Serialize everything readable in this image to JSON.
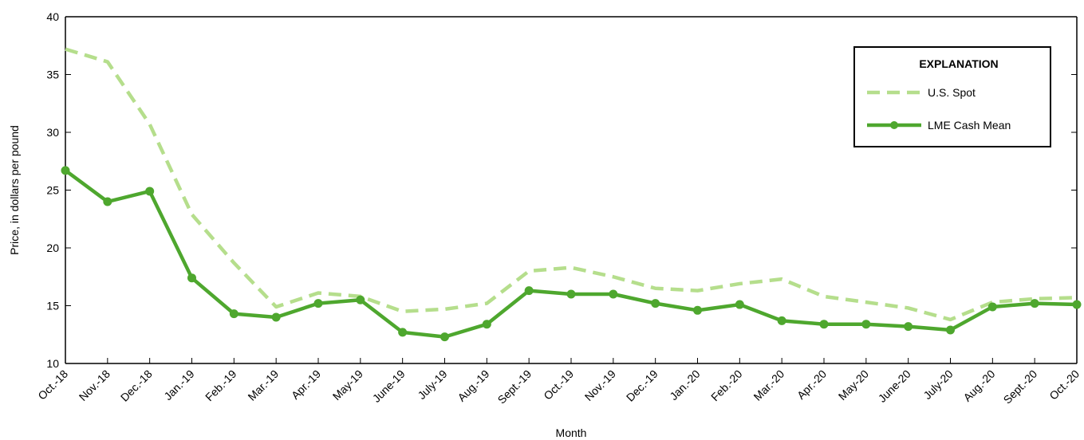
{
  "chart_data": {
    "type": "line",
    "xlabel": "Month",
    "ylabel": "Price, in dollars per pound",
    "ylim": [
      10,
      40
    ],
    "yticks": [
      10,
      15,
      20,
      25,
      30,
      35,
      40
    ],
    "grid": false,
    "legend_position": "top-right",
    "categories": [
      "Oct.-18",
      "Nov.-18",
      "Dec.-18",
      "Jan.-19",
      "Feb.-19",
      "Mar.-19",
      "Apr.-19",
      "May-19",
      "June-19",
      "July-19",
      "Aug.-19",
      "Sept.-19",
      "Oct.-19",
      "Nov.-19",
      "Dec.-19",
      "Jan.-20",
      "Feb.-20",
      "Mar.-20",
      "Apr.-20",
      "May-20",
      "June-20",
      "July-20",
      "Aug.-20",
      "Sept.-20",
      "Oct.-20"
    ],
    "series": [
      {
        "name": "U.S. Spot",
        "color": "#b5de8c",
        "style": "dashed",
        "values": [
          37.2,
          36.1,
          30.7,
          22.9,
          18.7,
          14.9,
          16.1,
          15.8,
          14.5,
          14.7,
          15.2,
          18.0,
          18.3,
          17.5,
          16.5,
          16.3,
          16.9,
          17.3,
          15.8,
          15.3,
          14.8,
          13.8,
          15.3,
          15.6,
          15.7
        ]
      },
      {
        "name": "LME Cash Mean",
        "color": "#4ea72e",
        "style": "solid-markers",
        "values": [
          26.7,
          24.0,
          24.9,
          17.4,
          14.3,
          14.0,
          15.2,
          15.5,
          12.7,
          12.3,
          13.4,
          16.3,
          16.0,
          16.0,
          15.2,
          14.6,
          15.1,
          13.7,
          13.4,
          13.4,
          13.2,
          12.9,
          14.9,
          15.2,
          15.1
        ]
      }
    ],
    "legend_title": "EXPLANATION"
  }
}
